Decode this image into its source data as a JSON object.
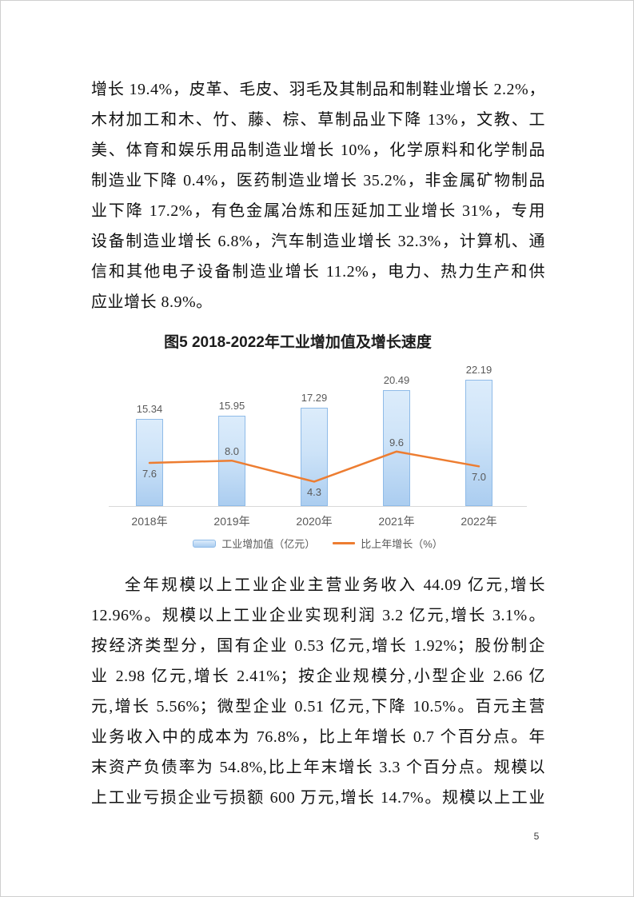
{
  "page_number": "5",
  "paragraphs": [
    {
      "lines": [
        "增长 19.4%，皮革、毛皮、羽毛及其制品和制鞋业增长 2.2%，",
        "木材加工和木、竹、藤、棕、草制品业下降 13%，文教、工",
        "美、体育和娱乐用品制造业增长 10%，化学原料和化学制品",
        "制造业下降 0.4%，医药制造业增长 35.2%，非金属矿物制品",
        "业下降 17.2%，有色金属冶炼和压延加工业增长 31%，专用",
        "设备制造业增长 6.8%，汽车制造业增长 32.3%，计算机、通",
        "信和其他电子设备制造业增长 11.2%，电力、热力生产和供",
        "应业增长 8.9%。"
      ]
    },
    {
      "lines": [
        "全年规模以上工业企业主营业务收入 44.09 亿元,增长",
        "12.96%。规模以上工业企业实现利润 3.2 亿元,增长 3.1%。",
        "按经济类型分，国有企业 0.53 亿元,增长 1.92%；股份制企",
        "业 2.98 亿元,增长 2.41%；按企业规模分,小型企业 2.66 亿",
        "元,增长 5.56%；微型企业 0.51 亿元,下降 10.5%。百元主营",
        "业务收入中的成本为 76.8%，比上年增长 0.7 个百分点。年",
        "末资产负债率为 54.8%,比上年末增长 3.3 个百分点。规模以",
        "上工业亏损企业亏损额 600 万元,增长 14.7%。规模以上工业"
      ]
    }
  ],
  "chart_data": {
    "type": "bar",
    "subtype": "bar-line-combo",
    "title": "图5 2018-2022年工业增加值及增长速度",
    "categories": [
      "2018年",
      "2019年",
      "2020年",
      "2021年",
      "2022年"
    ],
    "series": [
      {
        "name": "工业增加值（亿元）",
        "type": "bar",
        "values": [
          15.34,
          15.95,
          17.29,
          20.49,
          22.19
        ],
        "value_labels": [
          "15.34",
          "15.95",
          "17.29",
          "20.49",
          "22.19"
        ]
      },
      {
        "name": "比上年增长（%）",
        "type": "line",
        "values": [
          7.6,
          8.0,
          4.3,
          9.6,
          7.0
        ],
        "value_labels": [
          "7.6",
          "8.0",
          "4.3",
          "9.6",
          "7.0"
        ],
        "label_positions": [
          "below",
          "above",
          "below",
          "above",
          "below"
        ]
      }
    ],
    "xlabel": "",
    "ylabel": "",
    "ylim": [
      0,
      26
    ],
    "grid": false,
    "y_axis_visible": false,
    "legend_position": "bottom",
    "colors": {
      "bar_fill_top": "#dcecfb",
      "bar_fill_bottom": "#abcdf0",
      "bar_border": "#8fbbe8",
      "line": "#ED7D31",
      "labels": "#595959",
      "axis_line": "#d9d9d9"
    }
  }
}
